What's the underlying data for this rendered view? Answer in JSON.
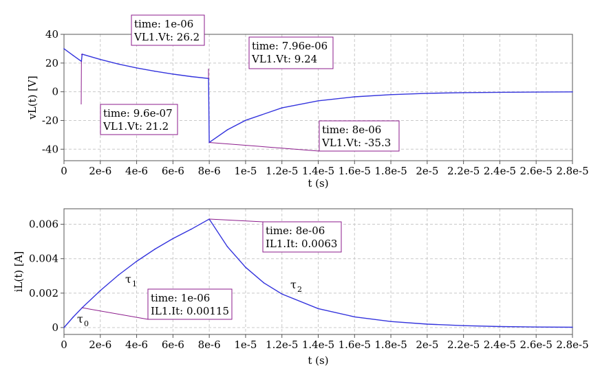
{
  "chart_data": [
    {
      "type": "line",
      "xlabel": "t (s)",
      "ylabel": "vL(t) [V]",
      "xlim": [
        0,
        2.8e-05
      ],
      "ylim": [
        -48,
        40
      ],
      "x_ticks": [
        "0",
        "2e-6",
        "4e-6",
        "6e-6",
        "8e-6",
        "1e-5",
        "1.2e-5",
        "1.4e-5",
        "1.6e-5",
        "1.8e-5",
        "2e-5",
        "2.2e-5",
        "2.4e-5",
        "2.6e-5",
        "2.8e-5"
      ],
      "y_ticks": [
        "40",
        "20",
        "0",
        "-20",
        "-40"
      ],
      "y_tick_values": [
        40,
        20,
        0,
        -20,
        -40
      ],
      "grid": true,
      "line_color": "#3333dd",
      "series": [
        {
          "x": [
            0,
            5e-07,
            9.6e-07,
            1e-06,
            2e-06,
            3e-06,
            4e-06,
            5e-06,
            6e-06,
            7e-06,
            7.96e-06,
            8e-06,
            9e-06,
            1e-05,
            1.2e-05,
            1.4e-05,
            1.6e-05,
            1.8e-05,
            2e-05,
            2.2e-05,
            2.4e-05,
            2.6e-05,
            2.8e-05
          ],
          "y": [
            30,
            25.3,
            21.2,
            26.2,
            22.5,
            19.3,
            16.6,
            14.3,
            12.3,
            10.6,
            9.24,
            -35.3,
            -26.5,
            -19.9,
            -11.2,
            -6.3,
            -3.5,
            -2.0,
            -1.1,
            -0.6,
            -0.35,
            -0.2,
            -0.1
          ]
        }
      ],
      "annotations": [
        {
          "time": "time: 1e-06",
          "value": "VL1.Vt: 26.2",
          "x": 1e-06,
          "y": 26.2
        },
        {
          "time": "time: 9.6e-07",
          "value": "VL1.Vt: 21.2",
          "x": 9.6e-07,
          "y": 21.2
        },
        {
          "time": "time: 7.96e-06",
          "value": "VL1.Vt: 9.24",
          "x": 7.96e-06,
          "y": 9.24
        },
        {
          "time": "time: 8e-06",
          "value": "VL1.Vt: -35.3",
          "x": 8e-06,
          "y": -35.3
        }
      ]
    },
    {
      "type": "line",
      "xlabel": "t (s)",
      "ylabel": "iL(t) [A]",
      "xlim": [
        0,
        2.8e-05
      ],
      "ylim": [
        -0.0004,
        0.0069
      ],
      "x_ticks": [
        "0",
        "2e-6",
        "4e-6",
        "6e-6",
        "8e-6",
        "1e-5",
        "1.2e-5",
        "1.4e-5",
        "1.6e-5",
        "1.8e-5",
        "2e-5",
        "2.2e-5",
        "2.4e-5",
        "2.6e-5",
        "2.8e-5"
      ],
      "y_ticks": [
        "0.006",
        "0.004",
        "0.002",
        "0"
      ],
      "y_tick_values": [
        0.006,
        0.004,
        0.002,
        0
      ],
      "grid": true,
      "line_color": "#3333dd",
      "series": [
        {
          "x": [
            0,
            5e-07,
            1e-06,
            2e-06,
            3e-06,
            4e-06,
            5e-06,
            6e-06,
            7e-06,
            8e-06,
            9e-06,
            1e-05,
            1.1e-05,
            1.2e-05,
            1.4e-05,
            1.6e-05,
            1.8e-05,
            2e-05,
            2.2e-05,
            2.4e-05,
            2.6e-05,
            2.8e-05
          ],
          "y": [
            0,
            0.0006,
            0.00115,
            0.00215,
            0.00305,
            0.00385,
            0.00455,
            0.00517,
            0.00571,
            0.0063,
            0.0047,
            0.0035,
            0.0026,
            0.00195,
            0.0011,
            0.00062,
            0.00035,
            0.0002,
            0.00011,
            6e-05,
            3e-05,
            2e-05
          ]
        }
      ],
      "annotations": [
        {
          "time": "time: 8e-06",
          "value": "IL1.It: 0.0063",
          "x": 8e-06,
          "y": 0.0063
        },
        {
          "time": "time: 1e-06",
          "value": "IL1.It: 0.00115",
          "x": 1e-06,
          "y": 0.00115
        }
      ],
      "labels": [
        {
          "symbol": "τ",
          "sub": "0"
        },
        {
          "symbol": "τ",
          "sub": "1"
        },
        {
          "symbol": "τ",
          "sub": "2"
        }
      ]
    }
  ]
}
